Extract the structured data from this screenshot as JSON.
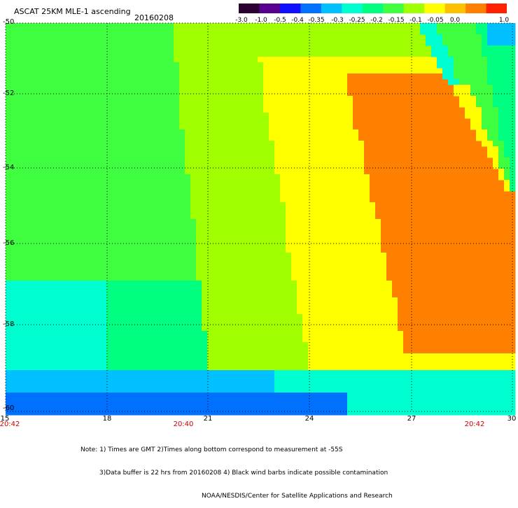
{
  "header": {
    "title": "ASCAT 25KM MLE-1 ascending",
    "date": "20160208"
  },
  "colorbar": {
    "labels": [
      "-3.0",
      "-1.0",
      "-0.5",
      "-0.4",
      "-0.35",
      "-0.3",
      "-0.25",
      "-0.2",
      "-0.15",
      "-0.1",
      "-0.05",
      "0.0",
      "1.0"
    ],
    "colors": [
      "#2a0030",
      "#5a0090",
      "#1010ff",
      "#0070ff",
      "#00c0ff",
      "#00ffd0",
      "#00ff80",
      "#40ff40",
      "#a0ff00",
      "#ffff00",
      "#ffc000",
      "#ff8000",
      "#ff2000"
    ]
  },
  "axes": {
    "lat_labels": [
      "-50",
      "-52",
      "-54",
      "-56",
      "-58",
      "-60"
    ],
    "lon_labels": [
      "15",
      "18",
      "21",
      "24",
      "27",
      "30"
    ],
    "time_labels": [
      "20:42",
      "20:40",
      "20:42"
    ]
  },
  "notes": {
    "line1": "Note: 1) Times are GMT 2)Times along bottom correspond to measurement at -55S",
    "line2": "3)Data buffer is 22 hrs from 20160208 4) Black wind barbs indicate possible contamination",
    "line3": "NOAA/NESDIS/Center for Satellite Applications and Research"
  }
}
